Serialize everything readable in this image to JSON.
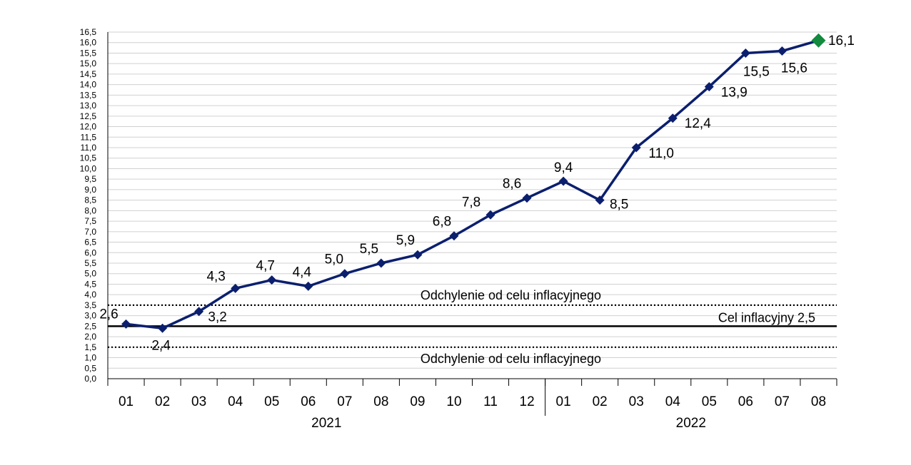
{
  "chart_data": {
    "type": "line",
    "title": "",
    "xlabel": "",
    "ylabel": "",
    "ylim": [
      0,
      16.5
    ],
    "ytick_step": 0.5,
    "grid": true,
    "legend": "none",
    "decimal_separator": ",",
    "categories": [
      "01",
      "02",
      "03",
      "04",
      "05",
      "06",
      "07",
      "08",
      "09",
      "10",
      "11",
      "12",
      "01",
      "02",
      "03",
      "04",
      "05",
      "06",
      "07",
      "08"
    ],
    "year_groups": [
      {
        "label": "2021",
        "count": 12
      },
      {
        "label": "2022",
        "count": 8
      }
    ],
    "series": [
      {
        "values": [
          2.6,
          2.4,
          3.2,
          4.3,
          4.7,
          4.4,
          5.0,
          5.5,
          5.9,
          6.8,
          7.8,
          8.6,
          9.4,
          8.5,
          11.0,
          12.4,
          13.9,
          15.5,
          15.6,
          16.1
        ],
        "data_labels": [
          "2,6",
          "2,4",
          "3,2",
          "4,3",
          "4,7",
          "4,4",
          "5,0",
          "5,5",
          "5,9",
          "6,8",
          "7,8",
          "8,6",
          "9,4",
          "8,5",
          "11,0",
          "12,4",
          "13,9",
          "15,5",
          "15,6",
          "16,1"
        ],
        "color": "#0b1f6e",
        "last_point_color": "#138a3e"
      }
    ],
    "reference_lines": [
      {
        "value": 3.5,
        "style": "dotted",
        "label": "Odchylenie od celu inflacyjnego"
      },
      {
        "value": 2.5,
        "style": "solid",
        "label": "Cel inflacyjny 2,5"
      },
      {
        "value": 1.5,
        "style": "dotted",
        "label": "Odchylenie od celu inflacyjnego"
      }
    ],
    "colors": {
      "line": "#0b1f6e",
      "highlight_marker": "#138a3e",
      "grid": "#d0d0d0",
      "axis": "#000000"
    }
  }
}
